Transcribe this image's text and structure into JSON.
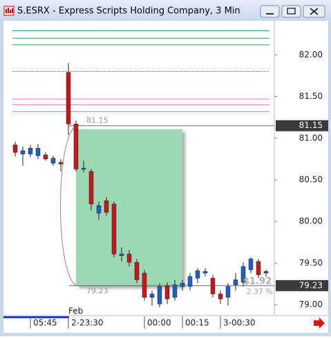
{
  "window": {
    "title": "S.ESRX - Express Scripts Holding Company, 3 Min"
  },
  "chart_data": {
    "type": "candlestick",
    "open": [
      80.92,
      80.81,
      80.81,
      80.79,
      80.8,
      80.7,
      80.71,
      81.79,
      81.17,
      80.63,
      80.6,
      80.1,
      80.25,
      80.21,
      79.59,
      79.61,
      79.51,
      79.38,
      79.09,
      79.01,
      79.23,
      79.09,
      79.22,
      79.22,
      79.32,
      79.38,
      79.32,
      79.13,
      79.09,
      79.24,
      79.27,
      79.42,
      79.52,
      79.38
    ],
    "high": [
      80.96,
      80.9,
      80.92,
      80.93,
      80.83,
      80.79,
      80.75,
      81.9,
      81.21,
      80.73,
      80.63,
      80.24,
      80.29,
      80.24,
      79.69,
      79.66,
      79.55,
      79.42,
      79.17,
      79.26,
      79.27,
      79.3,
      79.3,
      79.38,
      79.44,
      79.44,
      79.36,
      79.17,
      79.26,
      79.38,
      79.51,
      79.57,
      79.55,
      79.42
    ],
    "low": [
      80.78,
      80.67,
      80.77,
      80.75,
      80.73,
      80.67,
      80.6,
      81.04,
      80.6,
      80.59,
      80.13,
      80.02,
      80.07,
      79.57,
      79.52,
      79.46,
      79.26,
      79.05,
      78.99,
      78.97,
      79.01,
      79.05,
      79.17,
      79.17,
      79.26,
      79.34,
      79.09,
      79.01,
      78.99,
      79.17,
      79.22,
      79.38,
      79.32,
      79.34
    ],
    "close": [
      80.83,
      80.85,
      80.88,
      80.88,
      80.75,
      80.76,
      80.69,
      81.17,
      80.63,
      80.64,
      80.21,
      80.19,
      80.11,
      79.61,
      79.61,
      79.51,
      79.3,
      79.09,
      79.13,
      79.22,
      79.07,
      79.24,
      79.26,
      79.34,
      79.41,
      79.4,
      79.13,
      79.07,
      79.22,
      79.3,
      79.46,
      79.55,
      79.36,
      79.4
    ],
    "up_color": "#1f5fbf",
    "down_color": "#c8161d",
    "ylim": [
      78.88,
      82.41
    ],
    "yticks": [
      {
        "value": 79,
        "label": "79.00"
      },
      {
        "value": 79.5,
        "label": "79.50"
      },
      {
        "value": 80,
        "label": "80.00"
      },
      {
        "value": 80.5,
        "label": "80.50"
      },
      {
        "value": 81,
        "label": "81.00"
      },
      {
        "value": 81.5,
        "label": "81.50"
      },
      {
        "value": 82,
        "label": "82.00"
      }
    ],
    "x_labels": [
      {
        "index": 2,
        "label": "05:45"
      },
      {
        "index": 7,
        "label": "2-23:30"
      },
      {
        "index": 17,
        "label": "00:00"
      },
      {
        "index": 22,
        "label": "00:15"
      },
      {
        "index": 27,
        "label": "3-00:30"
      }
    ],
    "month_label": "Feb",
    "levels": [
      {
        "value": 82.29,
        "color": "#1d9a5c"
      },
      {
        "value": 82.2,
        "color": "#1d9a5c"
      },
      {
        "value": 82.12,
        "color": "#1d9a5c"
      },
      {
        "value": 81.8,
        "color": "#999999"
      },
      {
        "value": 81.47,
        "color": "#e070b8"
      },
      {
        "value": 81.4,
        "color": "#e070b8"
      },
      {
        "value": 81.32,
        "color": "#e070b8"
      }
    ],
    "price_markers": [
      {
        "value": 81.15,
        "label": "81.15"
      },
      {
        "value": 79.23,
        "label": "79.23"
      }
    ],
    "zone": {
      "start": 8,
      "end": 22,
      "color": "#9dd8b4"
    },
    "change": {
      "value": 1.92,
      "label": "$1.92"
    },
    "change_pct": {
      "value": 2.37,
      "label": "2.37 %"
    }
  }
}
